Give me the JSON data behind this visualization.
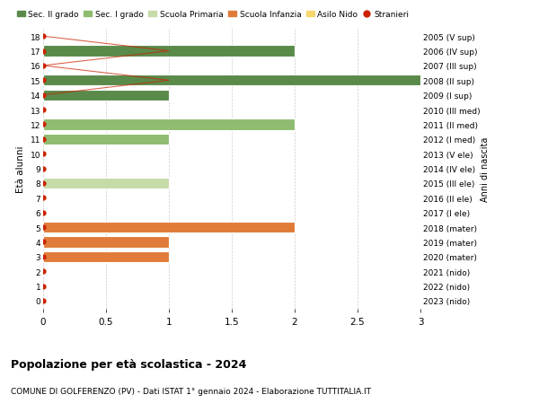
{
  "ages": [
    18,
    17,
    16,
    15,
    14,
    13,
    12,
    11,
    10,
    9,
    8,
    7,
    6,
    5,
    4,
    3,
    2,
    1,
    0
  ],
  "right_labels": [
    "2005 (V sup)",
    "2006 (IV sup)",
    "2007 (III sup)",
    "2008 (II sup)",
    "2009 (I sup)",
    "2010 (III med)",
    "2011 (II med)",
    "2012 (I med)",
    "2013 (V ele)",
    "2014 (IV ele)",
    "2015 (III ele)",
    "2016 (II ele)",
    "2017 (I ele)",
    "2018 (mater)",
    "2019 (mater)",
    "2020 (mater)",
    "2021 (nido)",
    "2022 (nido)",
    "2023 (nido)"
  ],
  "bar_data": [
    {
      "age": 17,
      "value": 2,
      "color": "#5a8a4a"
    },
    {
      "age": 15,
      "value": 3,
      "color": "#5a8a4a"
    },
    {
      "age": 14,
      "value": 1,
      "color": "#5a8a4a"
    },
    {
      "age": 12,
      "value": 2,
      "color": "#8fbc70"
    },
    {
      "age": 11,
      "value": 1,
      "color": "#8fbc70"
    },
    {
      "age": 8,
      "value": 1,
      "color": "#c5dba8"
    },
    {
      "age": 5,
      "value": 2,
      "color": "#e07b39"
    },
    {
      "age": 4,
      "value": 1,
      "color": "#e07b39"
    },
    {
      "age": 3,
      "value": 1,
      "color": "#e07b39"
    }
  ],
  "stranieri_line_ages": [
    18,
    17,
    16,
    15,
    14
  ],
  "stranieri_line_vals": [
    0,
    1,
    0,
    1,
    0
  ],
  "stranieri_dot_ages": [
    18,
    17,
    16,
    15,
    14,
    13,
    12,
    11,
    10,
    9,
    8,
    7,
    6,
    5,
    4,
    3,
    2,
    1,
    0
  ],
  "legend_items": [
    {
      "label": "Sec. II grado",
      "color": "#5a8a4a",
      "type": "bar"
    },
    {
      "label": "Sec. I grado",
      "color": "#8fbc70",
      "type": "bar"
    },
    {
      "label": "Scuola Primaria",
      "color": "#c5dba8",
      "type": "bar"
    },
    {
      "label": "Scuola Infanzia",
      "color": "#e07b39",
      "type": "bar"
    },
    {
      "label": "Asilo Nido",
      "color": "#f5d76e",
      "type": "bar"
    },
    {
      "label": "Stranieri",
      "color": "#cc2200",
      "type": "dot"
    }
  ],
  "title": "Popolazione per età scolastica - 2024",
  "subtitle": "COMUNE DI GOLFERENZO (PV) - Dati ISTAT 1° gennaio 2024 - Elaborazione TUTTITALIA.IT",
  "ylabel": "Età alunni",
  "right_ylabel": "Anni di nascita",
  "xlim": [
    0,
    3.0
  ],
  "xticks": [
    0,
    0.5,
    1.0,
    1.5,
    2.0,
    2.5,
    3.0
  ],
  "bar_height": 0.75,
  "fig_width": 6.0,
  "fig_height": 4.6,
  "dpi": 100,
  "grid_color": "#cccccc",
  "bg_color": "#ffffff",
  "stranieri_line_color": "#cc2200",
  "stranieri_dot_color": "#cc2200"
}
